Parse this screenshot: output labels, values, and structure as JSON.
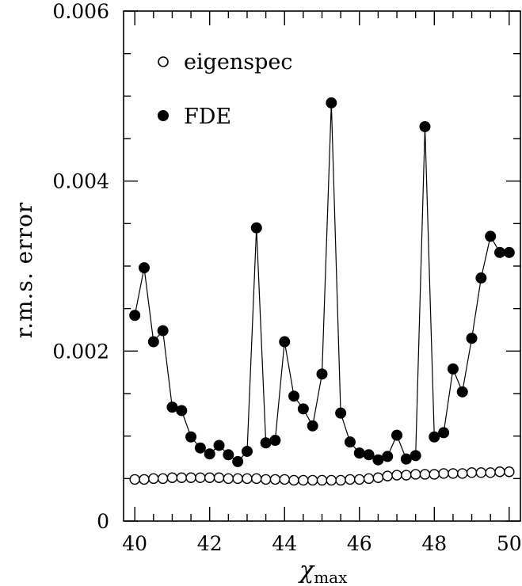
{
  "chart_data": {
    "type": "scatter",
    "title": "",
    "xlabel": "χ",
    "xlabel_subscript": "max",
    "ylabel": "r.m.s. error",
    "xlim": [
      39.7,
      50.3
    ],
    "ylim": [
      0,
      0.006
    ],
    "x_ticks": [
      40,
      42,
      44,
      46,
      48,
      50
    ],
    "x_tick_labels": [
      "40",
      "42",
      "44",
      "46",
      "48",
      "50"
    ],
    "y_ticks": [
      0,
      0.002,
      0.004,
      0.006
    ],
    "y_tick_labels": [
      "0",
      "0.002",
      "0.004",
      "0.006"
    ],
    "x_minor_step": 0.5,
    "y_minor_step": 0.0005,
    "grid": false,
    "legend_position": "top-left",
    "x": [
      40.0,
      40.25,
      40.5,
      40.75,
      41.0,
      41.25,
      41.5,
      41.75,
      42.0,
      42.25,
      42.5,
      42.75,
      43.0,
      43.25,
      43.5,
      43.75,
      44.0,
      44.25,
      44.5,
      44.75,
      45.0,
      45.25,
      45.5,
      45.75,
      46.0,
      46.25,
      46.5,
      46.75,
      47.0,
      47.25,
      47.5,
      47.75,
      48.0,
      48.25,
      48.5,
      48.75,
      49.0,
      49.25,
      49.5,
      49.75,
      50.0
    ],
    "series": [
      {
        "name": "eigenspec",
        "marker": "open-circle",
        "line": false,
        "color": "#000000",
        "values": [
          0.00049,
          0.00049,
          0.0005,
          0.0005,
          0.00051,
          0.00051,
          0.00051,
          0.00051,
          0.00051,
          0.00051,
          0.0005,
          0.0005,
          0.0005,
          0.0005,
          0.00049,
          0.00049,
          0.00049,
          0.00048,
          0.00048,
          0.00048,
          0.00048,
          0.00048,
          0.00048,
          0.00049,
          0.00049,
          0.0005,
          0.00051,
          0.00053,
          0.00054,
          0.00054,
          0.00055,
          0.00055,
          0.00055,
          0.00056,
          0.00056,
          0.00056,
          0.00057,
          0.00057,
          0.00057,
          0.00058,
          0.00058
        ]
      },
      {
        "name": "FDE",
        "marker": "filled-circle",
        "line": true,
        "color": "#000000",
        "values": [
          0.00242,
          0.00298,
          0.00211,
          0.00224,
          0.00134,
          0.0013,
          0.00099,
          0.00086,
          0.00079,
          0.00089,
          0.00078,
          0.0007,
          0.00082,
          0.00345,
          0.00092,
          0.00095,
          0.00211,
          0.00147,
          0.00132,
          0.00112,
          0.00173,
          0.00492,
          0.00127,
          0.00093,
          0.0008,
          0.00078,
          0.00072,
          0.00076,
          0.00101,
          0.00073,
          0.00077,
          0.00464,
          0.00099,
          0.00104,
          0.00179,
          0.00152,
          0.00215,
          0.00286,
          0.00335,
          0.00316,
          0.00316
        ]
      }
    ]
  }
}
